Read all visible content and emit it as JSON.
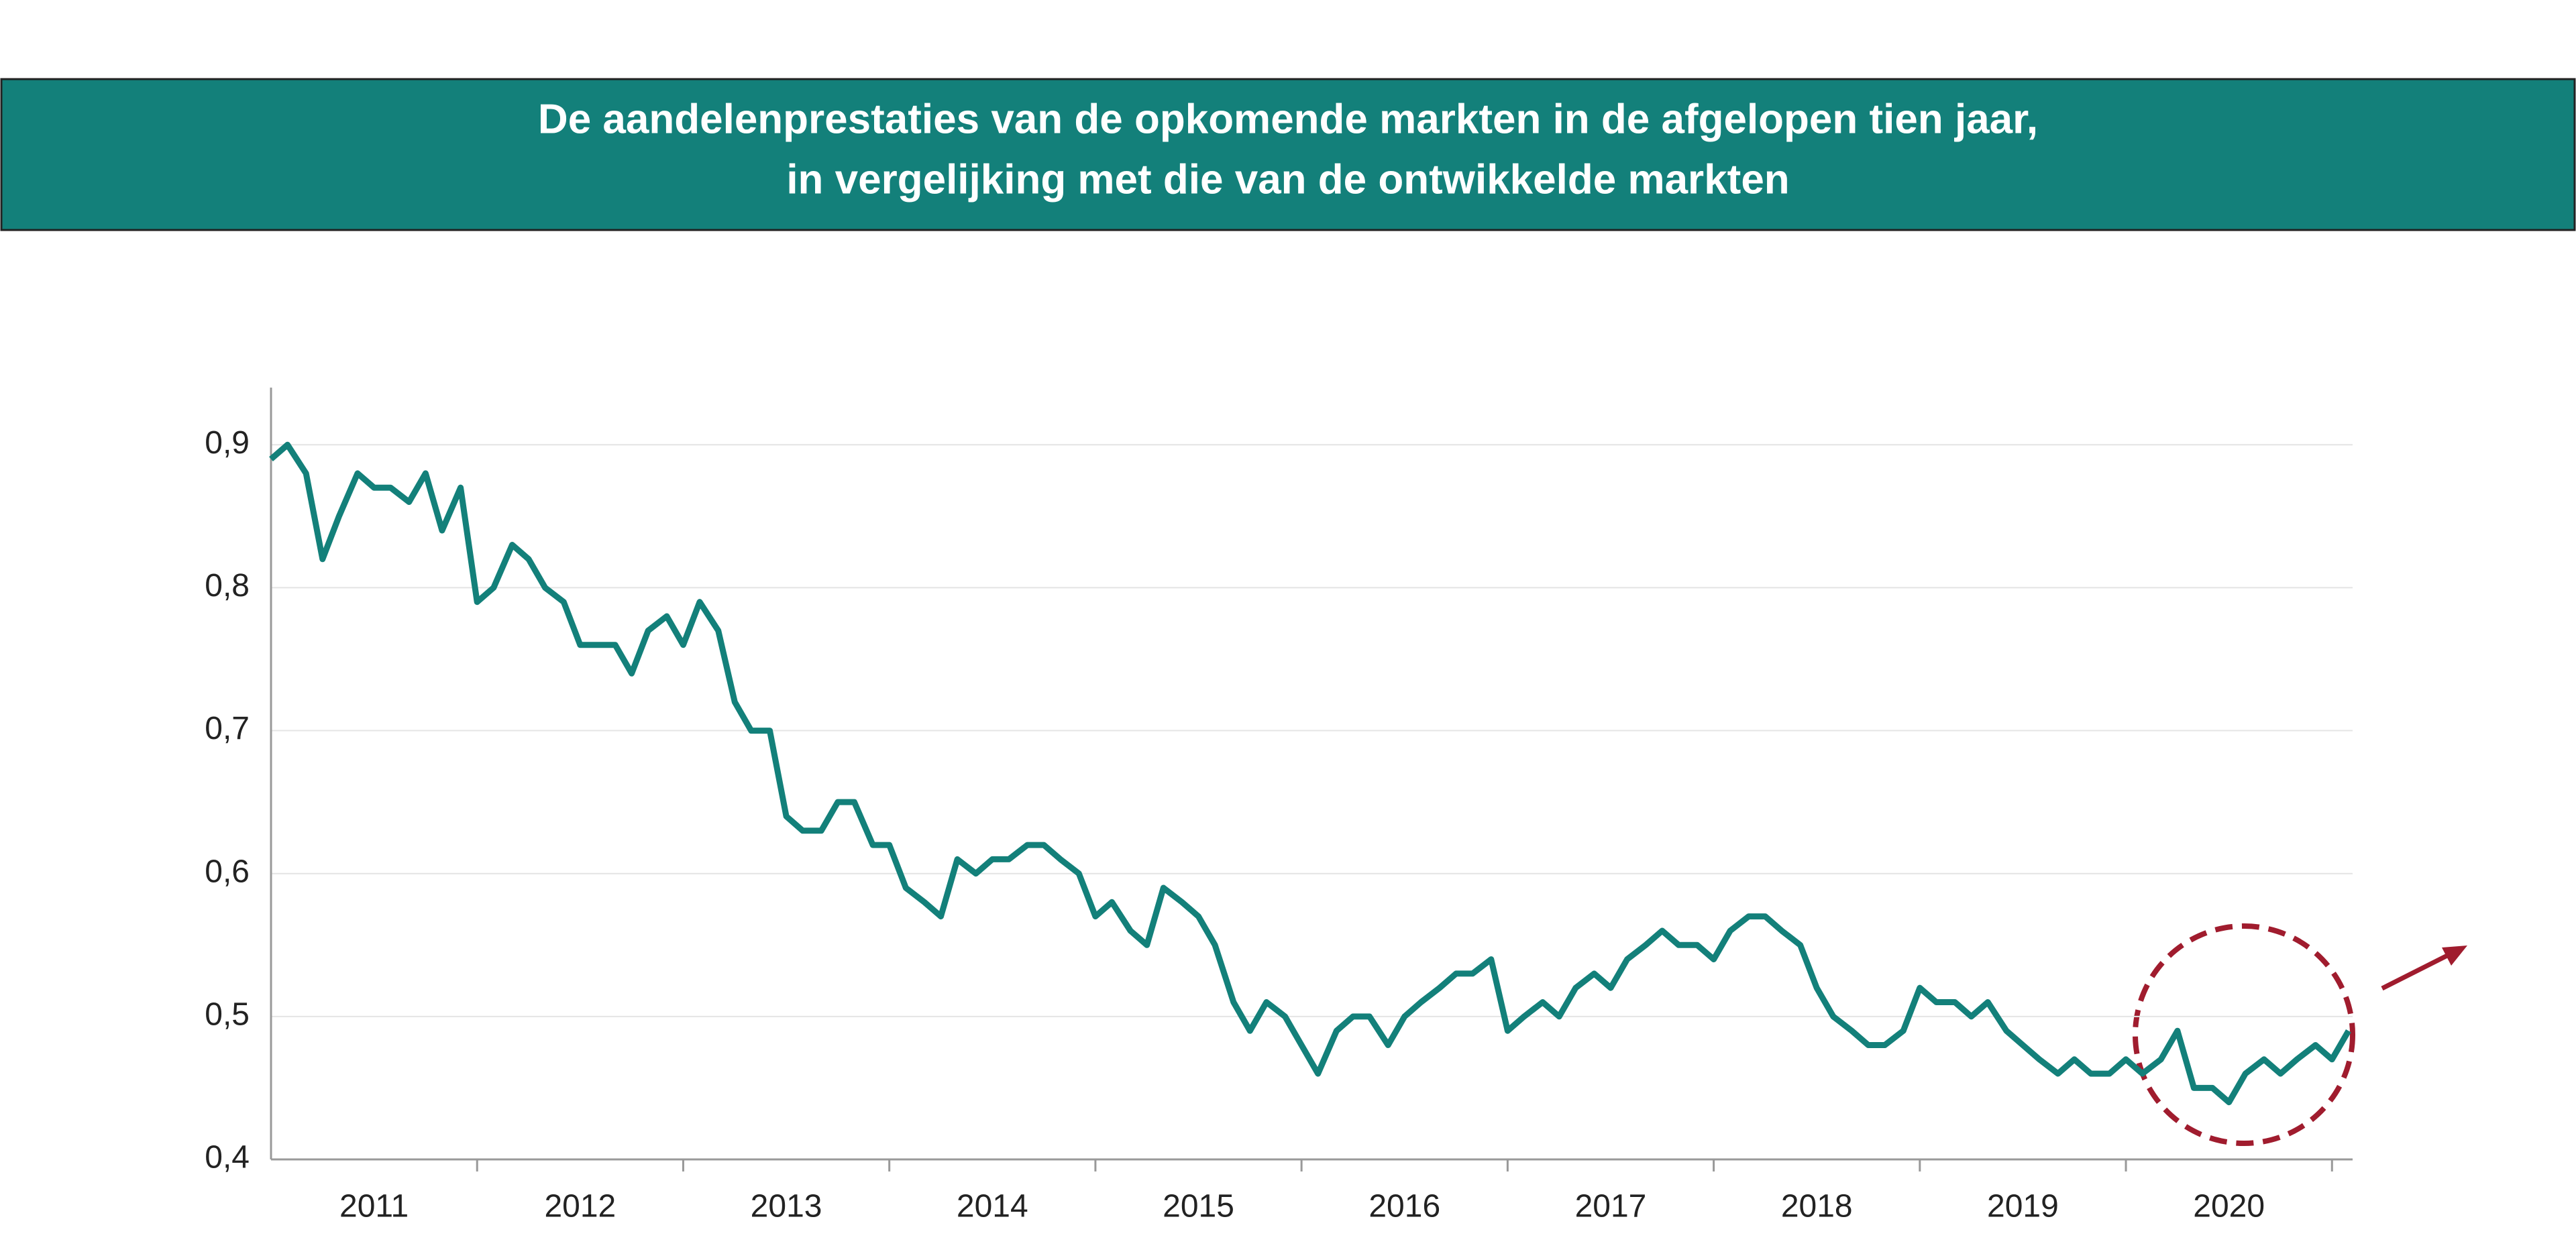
{
  "chart_data": {
    "type": "line",
    "title": [
      "De aandelenprestaties van de opkomende markten in de afgelopen tien jaar,",
      "in vergelijking met die van de ontwikkelde markten"
    ],
    "categories": [
      "2011",
      "2012",
      "2013",
      "2014",
      "2015",
      "2016",
      "2017",
      "2018",
      "2019",
      "2020"
    ],
    "x": [
      2011,
      2011.08,
      2011.17,
      2011.25,
      2011.33,
      2011.42,
      2011.5,
      2011.58,
      2011.67,
      2011.75,
      2011.83,
      2011.92,
      2012,
      2012.08,
      2012.17,
      2012.25,
      2012.33,
      2012.42,
      2012.5,
      2012.58,
      2012.67,
      2012.75,
      2012.83,
      2012.92,
      2013,
      2013.08,
      2013.17,
      2013.25,
      2013.33,
      2013.42,
      2013.5,
      2013.58,
      2013.67,
      2013.75,
      2013.83,
      2013.92,
      2014,
      2014.08,
      2014.17,
      2014.25,
      2014.33,
      2014.42,
      2014.5,
      2014.58,
      2014.67,
      2014.75,
      2014.83,
      2014.92,
      2015,
      2015.08,
      2015.17,
      2015.25,
      2015.33,
      2015.42,
      2015.5,
      2015.58,
      2015.67,
      2015.75,
      2015.83,
      2015.92,
      2016,
      2016.08,
      2016.17,
      2016.25,
      2016.33,
      2016.42,
      2016.5,
      2016.58,
      2016.67,
      2016.75,
      2016.83,
      2016.92,
      2017,
      2017.08,
      2017.17,
      2017.25,
      2017.33,
      2017.42,
      2017.5,
      2017.58,
      2017.67,
      2017.75,
      2017.83,
      2017.92,
      2018,
      2018.08,
      2018.17,
      2018.25,
      2018.33,
      2018.42,
      2018.5,
      2018.58,
      2018.67,
      2018.75,
      2018.83,
      2018.92,
      2019,
      2019.08,
      2019.17,
      2019.25,
      2019.33,
      2019.42,
      2019.5,
      2019.58,
      2019.67,
      2019.75,
      2019.83,
      2019.92,
      2020,
      2020.08,
      2020.17,
      2020.25,
      2020.33,
      2020.42,
      2020.5,
      2020.58,
      2020.67,
      2020.75,
      2020.83,
      2020.92,
      2021,
      2021.08
    ],
    "series": [
      {
        "color": "#13807a",
        "values": [
          0.89,
          0.9,
          0.88,
          0.82,
          0.85,
          0.88,
          0.87,
          0.87,
          0.86,
          0.88,
          0.84,
          0.87,
          0.79,
          0.8,
          0.83,
          0.82,
          0.8,
          0.79,
          0.76,
          0.76,
          0.76,
          0.74,
          0.77,
          0.78,
          0.76,
          0.79,
          0.77,
          0.72,
          0.7,
          0.7,
          0.64,
          0.63,
          0.63,
          0.65,
          0.65,
          0.62,
          0.62,
          0.59,
          0.58,
          0.57,
          0.61,
          0.6,
          0.61,
          0.61,
          0.62,
          0.62,
          0.61,
          0.6,
          0.57,
          0.58,
          0.56,
          0.55,
          0.59,
          0.58,
          0.57,
          0.55,
          0.51,
          0.49,
          0.51,
          0.5,
          0.48,
          0.46,
          0.49,
          0.5,
          0.5,
          0.48,
          0.5,
          0.51,
          0.52,
          0.53,
          0.53,
          0.54,
          0.49,
          0.5,
          0.51,
          0.5,
          0.52,
          0.53,
          0.52,
          0.54,
          0.55,
          0.56,
          0.55,
          0.55,
          0.54,
          0.56,
          0.57,
          0.57,
          0.56,
          0.55,
          0.52,
          0.5,
          0.49,
          0.48,
          0.48,
          0.49,
          0.52,
          0.51,
          0.51,
          0.5,
          0.51,
          0.49,
          0.48,
          0.47,
          0.46,
          0.47,
          0.46,
          0.46,
          0.47,
          0.46,
          0.47,
          0.49,
          0.45,
          0.45,
          0.44,
          0.46,
          0.47,
          0.46,
          0.47,
          0.48,
          0.47,
          0.49
        ]
      }
    ],
    "xlim": [
      2011,
      2021.1
    ],
    "xticks": [
      2012,
      2013,
      2014,
      2015,
      2016,
      2017,
      2018,
      2019,
      2020,
      2021
    ],
    "ylim": [
      0.4,
      0.94
    ],
    "yticks": [
      {
        "value": 0.4,
        "label": "0,4"
      },
      {
        "value": 0.5,
        "label": "0,5"
      },
      {
        "value": 0.6,
        "label": "0,6"
      },
      {
        "value": 0.7,
        "label": "0,7"
      },
      {
        "value": 0.8,
        "label": "0,8"
      },
      {
        "value": 0.9,
        "label": "0,9"
      }
    ],
    "grid": true
  }
}
